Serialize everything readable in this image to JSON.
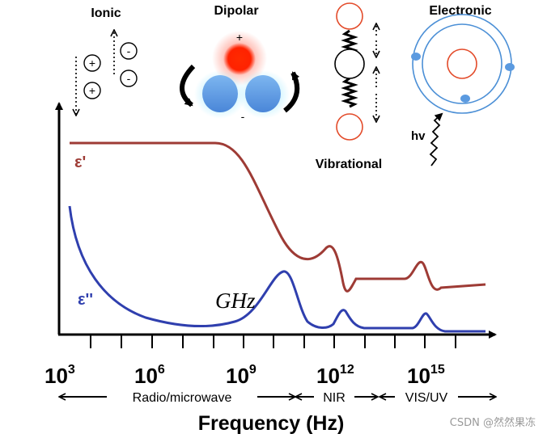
{
  "mechanisms": {
    "ionic": {
      "label": "Ionic",
      "plus": "+",
      "minus": "-"
    },
    "dipolar": {
      "label": "Dipolar",
      "plus": "+",
      "minus": "-"
    },
    "vibrational": {
      "label": "Vibrational"
    },
    "electronic": {
      "label": "Electronic",
      "photon": "hv"
    }
  },
  "curves": {
    "real": {
      "label": "ε'",
      "color": "#9e3b35"
    },
    "imag": {
      "label": "ε''",
      "color": "#2f3fae"
    }
  },
  "annotation": {
    "ghz": "GHz"
  },
  "axis": {
    "ticks": [
      {
        "base": "10",
        "exp": "3"
      },
      {
        "base": "10",
        "exp": "6"
      },
      {
        "base": "10",
        "exp": "9"
      },
      {
        "base": "10",
        "exp": "12"
      },
      {
        "base": "10",
        "exp": "15"
      }
    ],
    "xlabel": "Frequency (Hz)",
    "bands": [
      "Radio/microwave",
      "NIR",
      "VIS/UV"
    ]
  },
  "watermark": "CSDN @然然果冻",
  "colors": {
    "ion": "#1a1a1a",
    "oxygen": "#ff2200",
    "hydrogen": "#5b9ae0",
    "atom_outline": "#e34b2a",
    "orbit": "#4b8fd6"
  }
}
